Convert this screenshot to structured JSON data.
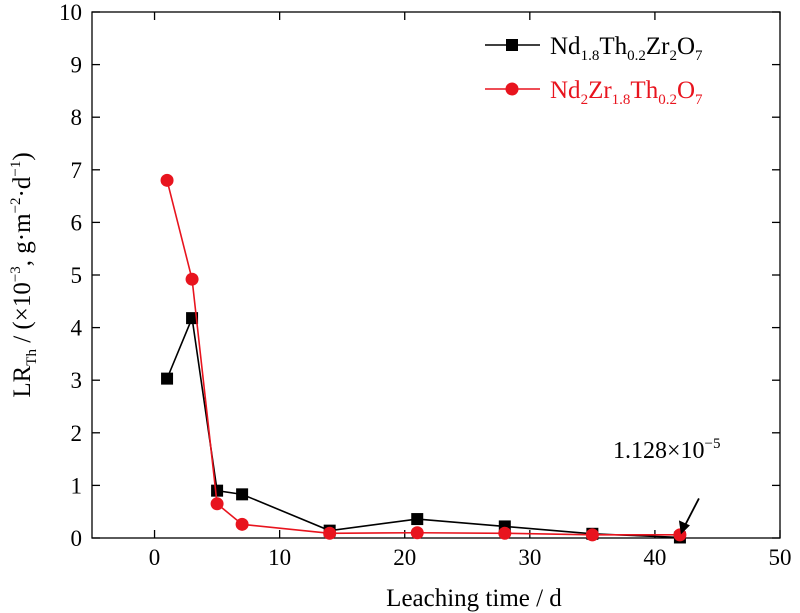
{
  "chart_data": {
    "type": "line",
    "xlabel": "Leaching time / d",
    "ylabel": {
      "base": "LR",
      "sub": "Th",
      "rest1": " / (×10",
      "exp1": "−3",
      "rest2": ", g·m",
      "exp2": "−2",
      "rest3": "·d",
      "exp3": "−1",
      "rest4": ")"
    },
    "xlim": [
      -5,
      50
    ],
    "ylim": [
      0,
      10
    ],
    "x_ticks": [
      0,
      10,
      20,
      30,
      40,
      50
    ],
    "y_ticks": [
      0,
      1,
      2,
      3,
      4,
      5,
      6,
      7,
      8,
      9,
      10
    ],
    "grid": false,
    "legend_position": "top-right",
    "series": [
      {
        "name": "Nd1.8Th0.2Zr2O7",
        "name_parts": [
          [
            "Nd",
            ""
          ],
          [
            "1.8",
            "sub"
          ],
          [
            "Th",
            ""
          ],
          [
            "0.2",
            "sub"
          ],
          [
            "Zr",
            ""
          ],
          [
            "2",
            "sub"
          ],
          [
            "O",
            ""
          ],
          [
            "7",
            "sub"
          ]
        ],
        "color": "#000000",
        "marker": "square",
        "x": [
          1,
          3,
          5,
          7,
          14,
          21,
          28,
          35,
          42
        ],
        "y": [
          3.03,
          4.18,
          0.9,
          0.83,
          0.14,
          0.36,
          0.22,
          0.08,
          0.01
        ]
      },
      {
        "name": "Nd2Zr1.8Th0.2O7",
        "name_parts": [
          [
            "Nd",
            ""
          ],
          [
            "2",
            "sub"
          ],
          [
            "Zr",
            ""
          ],
          [
            "1.8",
            "sub"
          ],
          [
            "Th",
            ""
          ],
          [
            "0.2",
            "sub"
          ],
          [
            "O",
            ""
          ],
          [
            "7",
            "sub"
          ]
        ],
        "color": "#e8141e",
        "marker": "circle",
        "x": [
          1,
          3,
          5,
          7,
          14,
          21,
          28,
          35,
          42
        ],
        "y": [
          6.8,
          4.92,
          0.65,
          0.26,
          0.09,
          0.1,
          0.09,
          0.06,
          0.06
        ]
      }
    ],
    "annotation": {
      "text": "1.128×10",
      "exp": "−5",
      "x": 42,
      "y": 0.03
    }
  }
}
